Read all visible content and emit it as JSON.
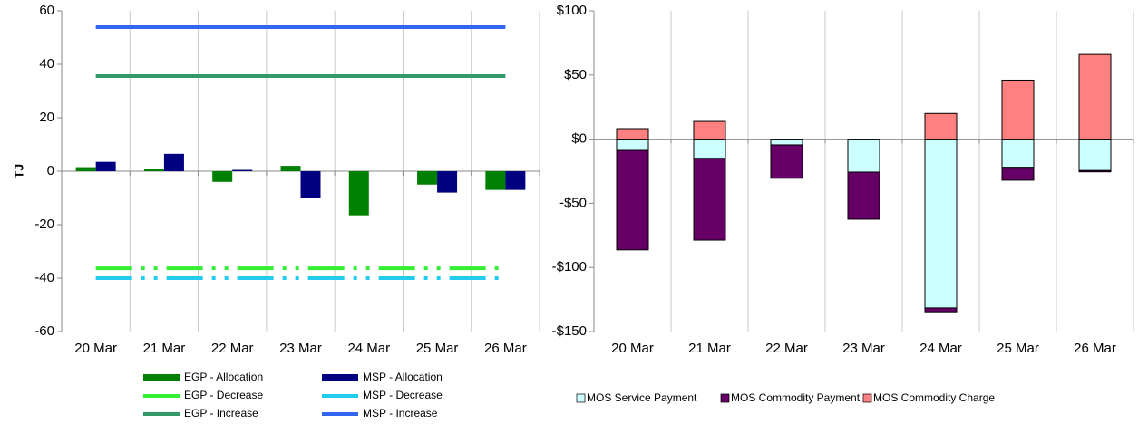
{
  "chart_data": [
    {
      "type": "combo",
      "y_label": "TJ",
      "categories": [
        "20 Mar",
        "21 Mar",
        "22 Mar",
        "23 Mar",
        "24 Mar",
        "25 Mar",
        "26 Mar"
      ],
      "ylim": [
        -60,
        60
      ],
      "yticks": [
        -60,
        -40,
        -20,
        0,
        20,
        40,
        60
      ],
      "grid": true,
      "legend": "bottom",
      "series": [
        {
          "name": "EGP - Allocation",
          "type": "bar",
          "color": "#008000",
          "values": [
            1.5,
            0.7,
            -4,
            2,
            -16.5,
            -5,
            -7
          ]
        },
        {
          "name": "MSP - Allocation",
          "type": "bar",
          "color": "#000080",
          "values": [
            3.5,
            6.5,
            0.5,
            -10,
            0,
            -8,
            -7
          ]
        },
        {
          "name": "EGP - Decrease",
          "type": "line",
          "style": "dashdot",
          "color": "#33ee33",
          "values": [
            -36.3,
            -36.3,
            -36.3,
            -36.3,
            -36.3,
            -36.3,
            -36.3
          ]
        },
        {
          "name": "MSP - Decrease",
          "type": "line",
          "style": "dashdot",
          "color": "#22ccee",
          "values": [
            -40,
            -40,
            -40,
            -40,
            -40,
            -40,
            -40
          ]
        },
        {
          "name": "EGP - Increase",
          "type": "line",
          "style": "solid",
          "color": "#339966",
          "values": [
            35.6,
            35.6,
            35.6,
            35.6,
            35.6,
            35.6,
            35.6
          ]
        },
        {
          "name": "MSP - Increase",
          "type": "line",
          "style": "solid",
          "color": "#3366ee",
          "values": [
            53.9,
            53.9,
            53.9,
            53.9,
            53.9,
            53.9,
            53.9
          ]
        }
      ]
    },
    {
      "type": "stacked_bar",
      "categories": [
        "20 Mar",
        "21 Mar",
        "22 Mar",
        "23 Mar",
        "24 Mar",
        "25 Mar",
        "26 Mar"
      ],
      "ylim": [
        -150,
        100
      ],
      "yticks": [
        {
          "value": -150,
          "label": "-$150"
        },
        {
          "value": -100,
          "label": "-$100"
        },
        {
          "value": -50,
          "label": "-$50"
        },
        {
          "value": 0,
          "label": "$0"
        },
        {
          "value": 50,
          "label": "$50"
        },
        {
          "value": 100,
          "label": "$100"
        }
      ],
      "grid": true,
      "legend": "bottom",
      "series": [
        {
          "name": "MOS Service Payment",
          "color": "#ccffff",
          "values": [
            -8.8,
            -15,
            -4.5,
            -25.7,
            -131.6,
            -22,
            -24.5
          ]
        },
        {
          "name": "MOS Commodity Payment",
          "color": "#660066",
          "values": [
            -77.5,
            -63.7,
            -26,
            -36.7,
            -3,
            -10,
            -1
          ]
        },
        {
          "name": "MOS Commodity Charge",
          "color": "#ff8080",
          "values": [
            8.2,
            13.8,
            0,
            0,
            20,
            46,
            66
          ]
        }
      ]
    }
  ]
}
